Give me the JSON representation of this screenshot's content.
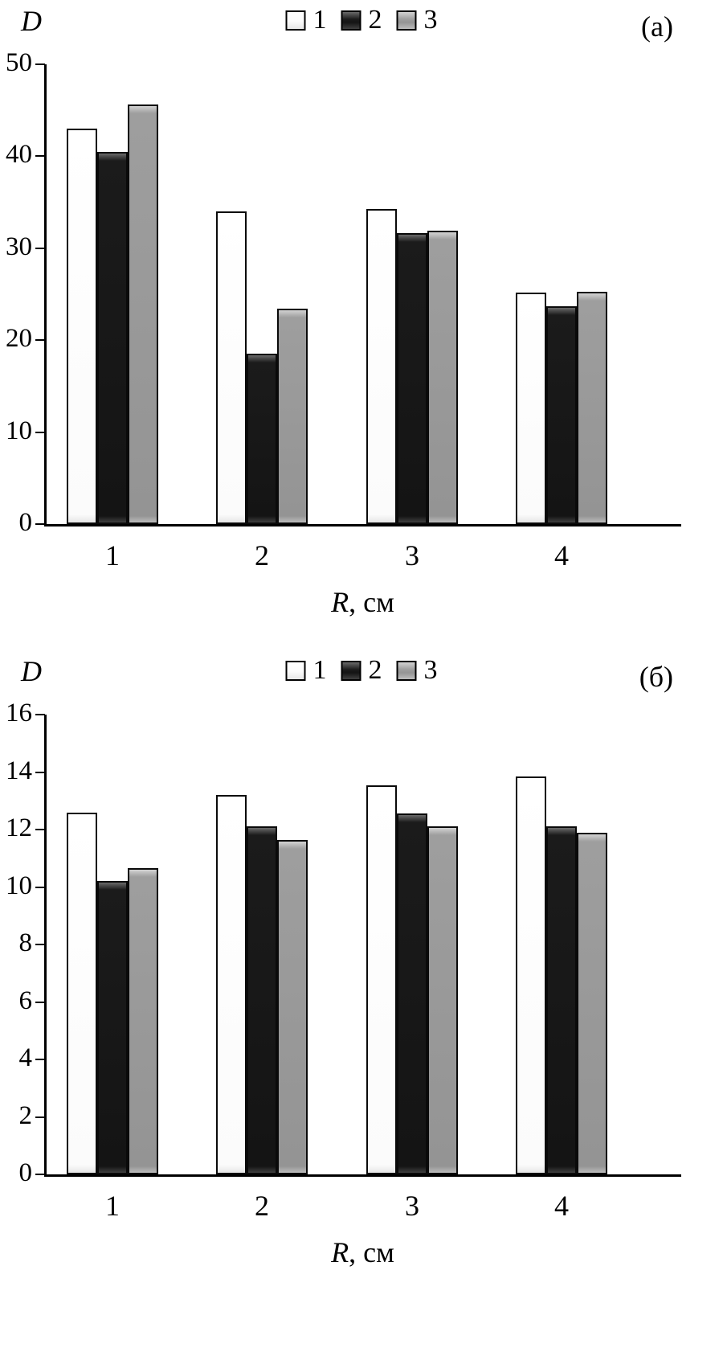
{
  "figure": {
    "panels": [
      "(а)",
      "(б)"
    ]
  },
  "chart_data": [
    {
      "type": "bar",
      "panel_label": "(а)",
      "title": "",
      "ylabel": "D",
      "xlabel_italic": "R",
      "xlabel_rest": ", см",
      "categories": [
        "1",
        "2",
        "3",
        "4"
      ],
      "series": [
        {
          "name": "1",
          "color": "#ffffff",
          "values": [
            43.0,
            34.0,
            34.3,
            25.2
          ]
        },
        {
          "name": "2",
          "color": "#1a1a1a",
          "values": [
            40.5,
            18.5,
            31.6,
            23.7
          ]
        },
        {
          "name": "3",
          "color": "#9a9a9a",
          "values": [
            45.6,
            23.4,
            31.9,
            25.3
          ]
        }
      ],
      "ylim": [
        0,
        50
      ],
      "ytick_step": 10,
      "legend_position": "top",
      "grid": false
    },
    {
      "type": "bar",
      "panel_label": "(б)",
      "title": "",
      "ylabel": "D",
      "xlabel_italic": "R",
      "xlabel_rest": ", см",
      "categories": [
        "1",
        "2",
        "3",
        "4"
      ],
      "series": [
        {
          "name": "1",
          "color": "#ffffff",
          "values": [
            12.6,
            13.2,
            13.55,
            13.85
          ]
        },
        {
          "name": "2",
          "color": "#1a1a1a",
          "values": [
            10.2,
            12.1,
            12.55,
            12.1
          ]
        },
        {
          "name": "3",
          "color": "#9a9a9a",
          "values": [
            10.65,
            11.65,
            12.1,
            11.9
          ]
        }
      ],
      "ylim": [
        0,
        16
      ],
      "ytick_step": 2,
      "legend_position": "top",
      "grid": false
    }
  ]
}
